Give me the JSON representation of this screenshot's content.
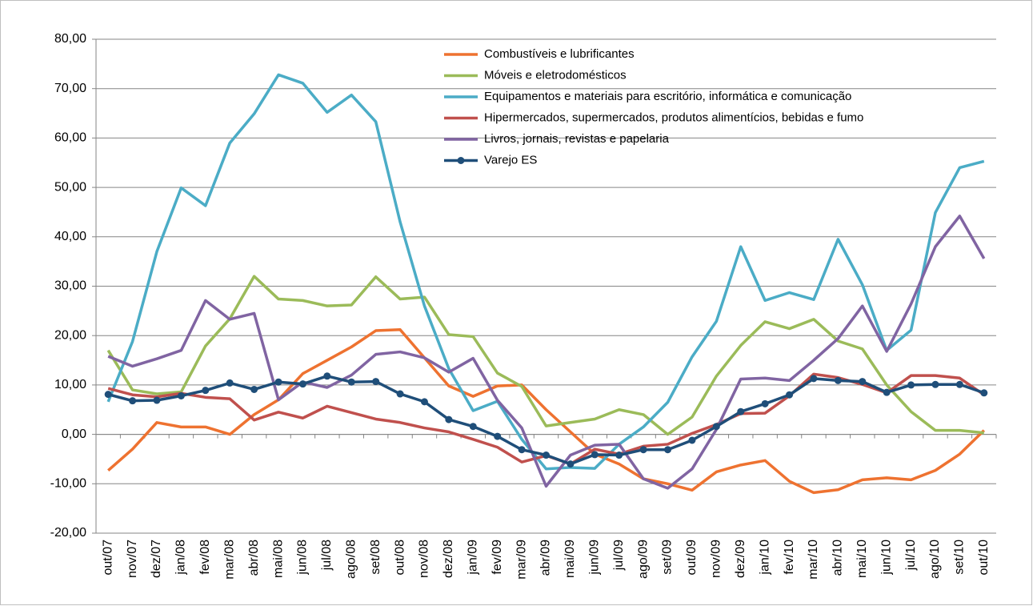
{
  "chart_data": {
    "type": "line",
    "categories": [
      "out/07",
      "nov/07",
      "dez/07",
      "jan/08",
      "fev/08",
      "mar/08",
      "abr/08",
      "mai/08",
      "jun/08",
      "jul/08",
      "ago/08",
      "set/08",
      "out/08",
      "nov/08",
      "dez/08",
      "jan/09",
      "fev/09",
      "mar/09",
      "abr/09",
      "mai/09",
      "jun/09",
      "jul/09",
      "ago/09",
      "set/09",
      "out/09",
      "nov/09",
      "dez/09",
      "jan/10",
      "fev/10",
      "mar/10",
      "abr/10",
      "mai/10",
      "jun/10",
      "jul/10",
      "ago/10",
      "set/10",
      "out/10"
    ],
    "series": [
      {
        "name": "Combustíveis e lubrificantes",
        "color": "#ee7230",
        "values": [
          -7.3,
          -3,
          2.4,
          1.5,
          1.5,
          0,
          4,
          7,
          12.3,
          15,
          17.7,
          21,
          21.2,
          15.5,
          9.8,
          7.7,
          9.8,
          10,
          5,
          0.5,
          -4,
          -6,
          -9,
          -10,
          -11.3,
          -7.6,
          -6.2,
          -5.3,
          -9.5,
          -11.8,
          -11.2,
          -9.2,
          -8.8,
          -9.2,
          -7.3,
          -4,
          0.8
        ]
      },
      {
        "name": "Móveis e eletrodomésticos",
        "color": "#9bbb59",
        "values": [
          17,
          9,
          8.2,
          8.6,
          17.9,
          23.4,
          32,
          27.4,
          27.1,
          26,
          26.2,
          31.9,
          27.4,
          27.8,
          20.2,
          19.8,
          12.4,
          9.7,
          1.7,
          2.4,
          3.1,
          5,
          4,
          0,
          3.5,
          11.8,
          18,
          22.8,
          21.4,
          23.3,
          18.9,
          17.3,
          10,
          4.6,
          0.8,
          0.8,
          0.3
        ]
      },
      {
        "name": "Equipamentos e materiais para escritório, informática e comunicação",
        "color": "#4bacc6",
        "values": [
          6.6,
          18.8,
          37,
          49.9,
          46.3,
          59,
          64.9,
          72.8,
          71.1,
          65.2,
          68.7,
          63.3,
          43,
          26,
          13.3,
          4.8,
          6.7,
          -1,
          -7,
          -6.7,
          -6.9,
          -2,
          1.5,
          6.5,
          15.7,
          22.9,
          38,
          27.1,
          28.7,
          27.3,
          39.5,
          30.3,
          17,
          21.1,
          44.9,
          54,
          55.3
        ]
      },
      {
        "name": "Hipermercados, supermercados, produtos alimentícios, bebidas e fumo",
        "color": "#c0504d",
        "values": [
          9.3,
          8,
          7.6,
          8.3,
          7.5,
          7.2,
          2.9,
          4.5,
          3.3,
          5.7,
          4.4,
          3.1,
          2.4,
          1.3,
          0.5,
          -1,
          -2.6,
          -5.6,
          -4.3,
          -6,
          -3,
          -4,
          -2.4,
          -2,
          0.2,
          2,
          4.2,
          4.3,
          7.8,
          12.2,
          11.5,
          10.1,
          8.4,
          11.9,
          11.9,
          11.4,
          8
        ]
      },
      {
        "name": "Livros, jornais, revistas e papelaria",
        "color": "#8064a2",
        "values": [
          15.8,
          13.8,
          15.3,
          17,
          27.1,
          23.3,
          24.5,
          7,
          10.6,
          9.5,
          12,
          16.2,
          16.7,
          15.5,
          12.6,
          15.4,
          6.9,
          1.3,
          -10.5,
          -4.2,
          -2.2,
          -2,
          -9,
          -10.9,
          -7,
          1,
          11.2,
          11.4,
          10.9,
          15,
          19.4,
          26,
          16.8,
          26.4,
          38,
          44.2,
          35.6
        ]
      },
      {
        "name": "Varejo ES",
        "color": "#1f4e79",
        "markers": true,
        "values": [
          8.1,
          6.8,
          6.9,
          7.8,
          8.9,
          10.4,
          9.1,
          10.6,
          10.2,
          11.8,
          10.6,
          10.7,
          8.2,
          6.6,
          3,
          1.6,
          -0.4,
          -3.1,
          -4.2,
          -6,
          -4.1,
          -4.2,
          -3.1,
          -3.1,
          -1.2,
          1.6,
          4.6,
          6.2,
          8,
          11.3,
          10.9,
          10.7,
          8.5,
          10,
          10.1,
          10.1,
          8.4
        ]
      }
    ],
    "ylim": [
      -20,
      80
    ],
    "yticks": [
      {
        "value": -20,
        "label": "-20,00"
      },
      {
        "value": -10,
        "label": "-10,00"
      },
      {
        "value": 0,
        "label": "0,00"
      },
      {
        "value": 10,
        "label": "10,00"
      },
      {
        "value": 20,
        "label": "20,00"
      },
      {
        "value": 30,
        "label": "30,00"
      },
      {
        "value": 40,
        "label": "40,00"
      },
      {
        "value": 50,
        "label": "50,00"
      },
      {
        "value": 60,
        "label": "60,00"
      },
      {
        "value": 70,
        "label": "70,00"
      },
      {
        "value": 80,
        "label": "80,00"
      }
    ],
    "grid": true,
    "legend": "top"
  }
}
